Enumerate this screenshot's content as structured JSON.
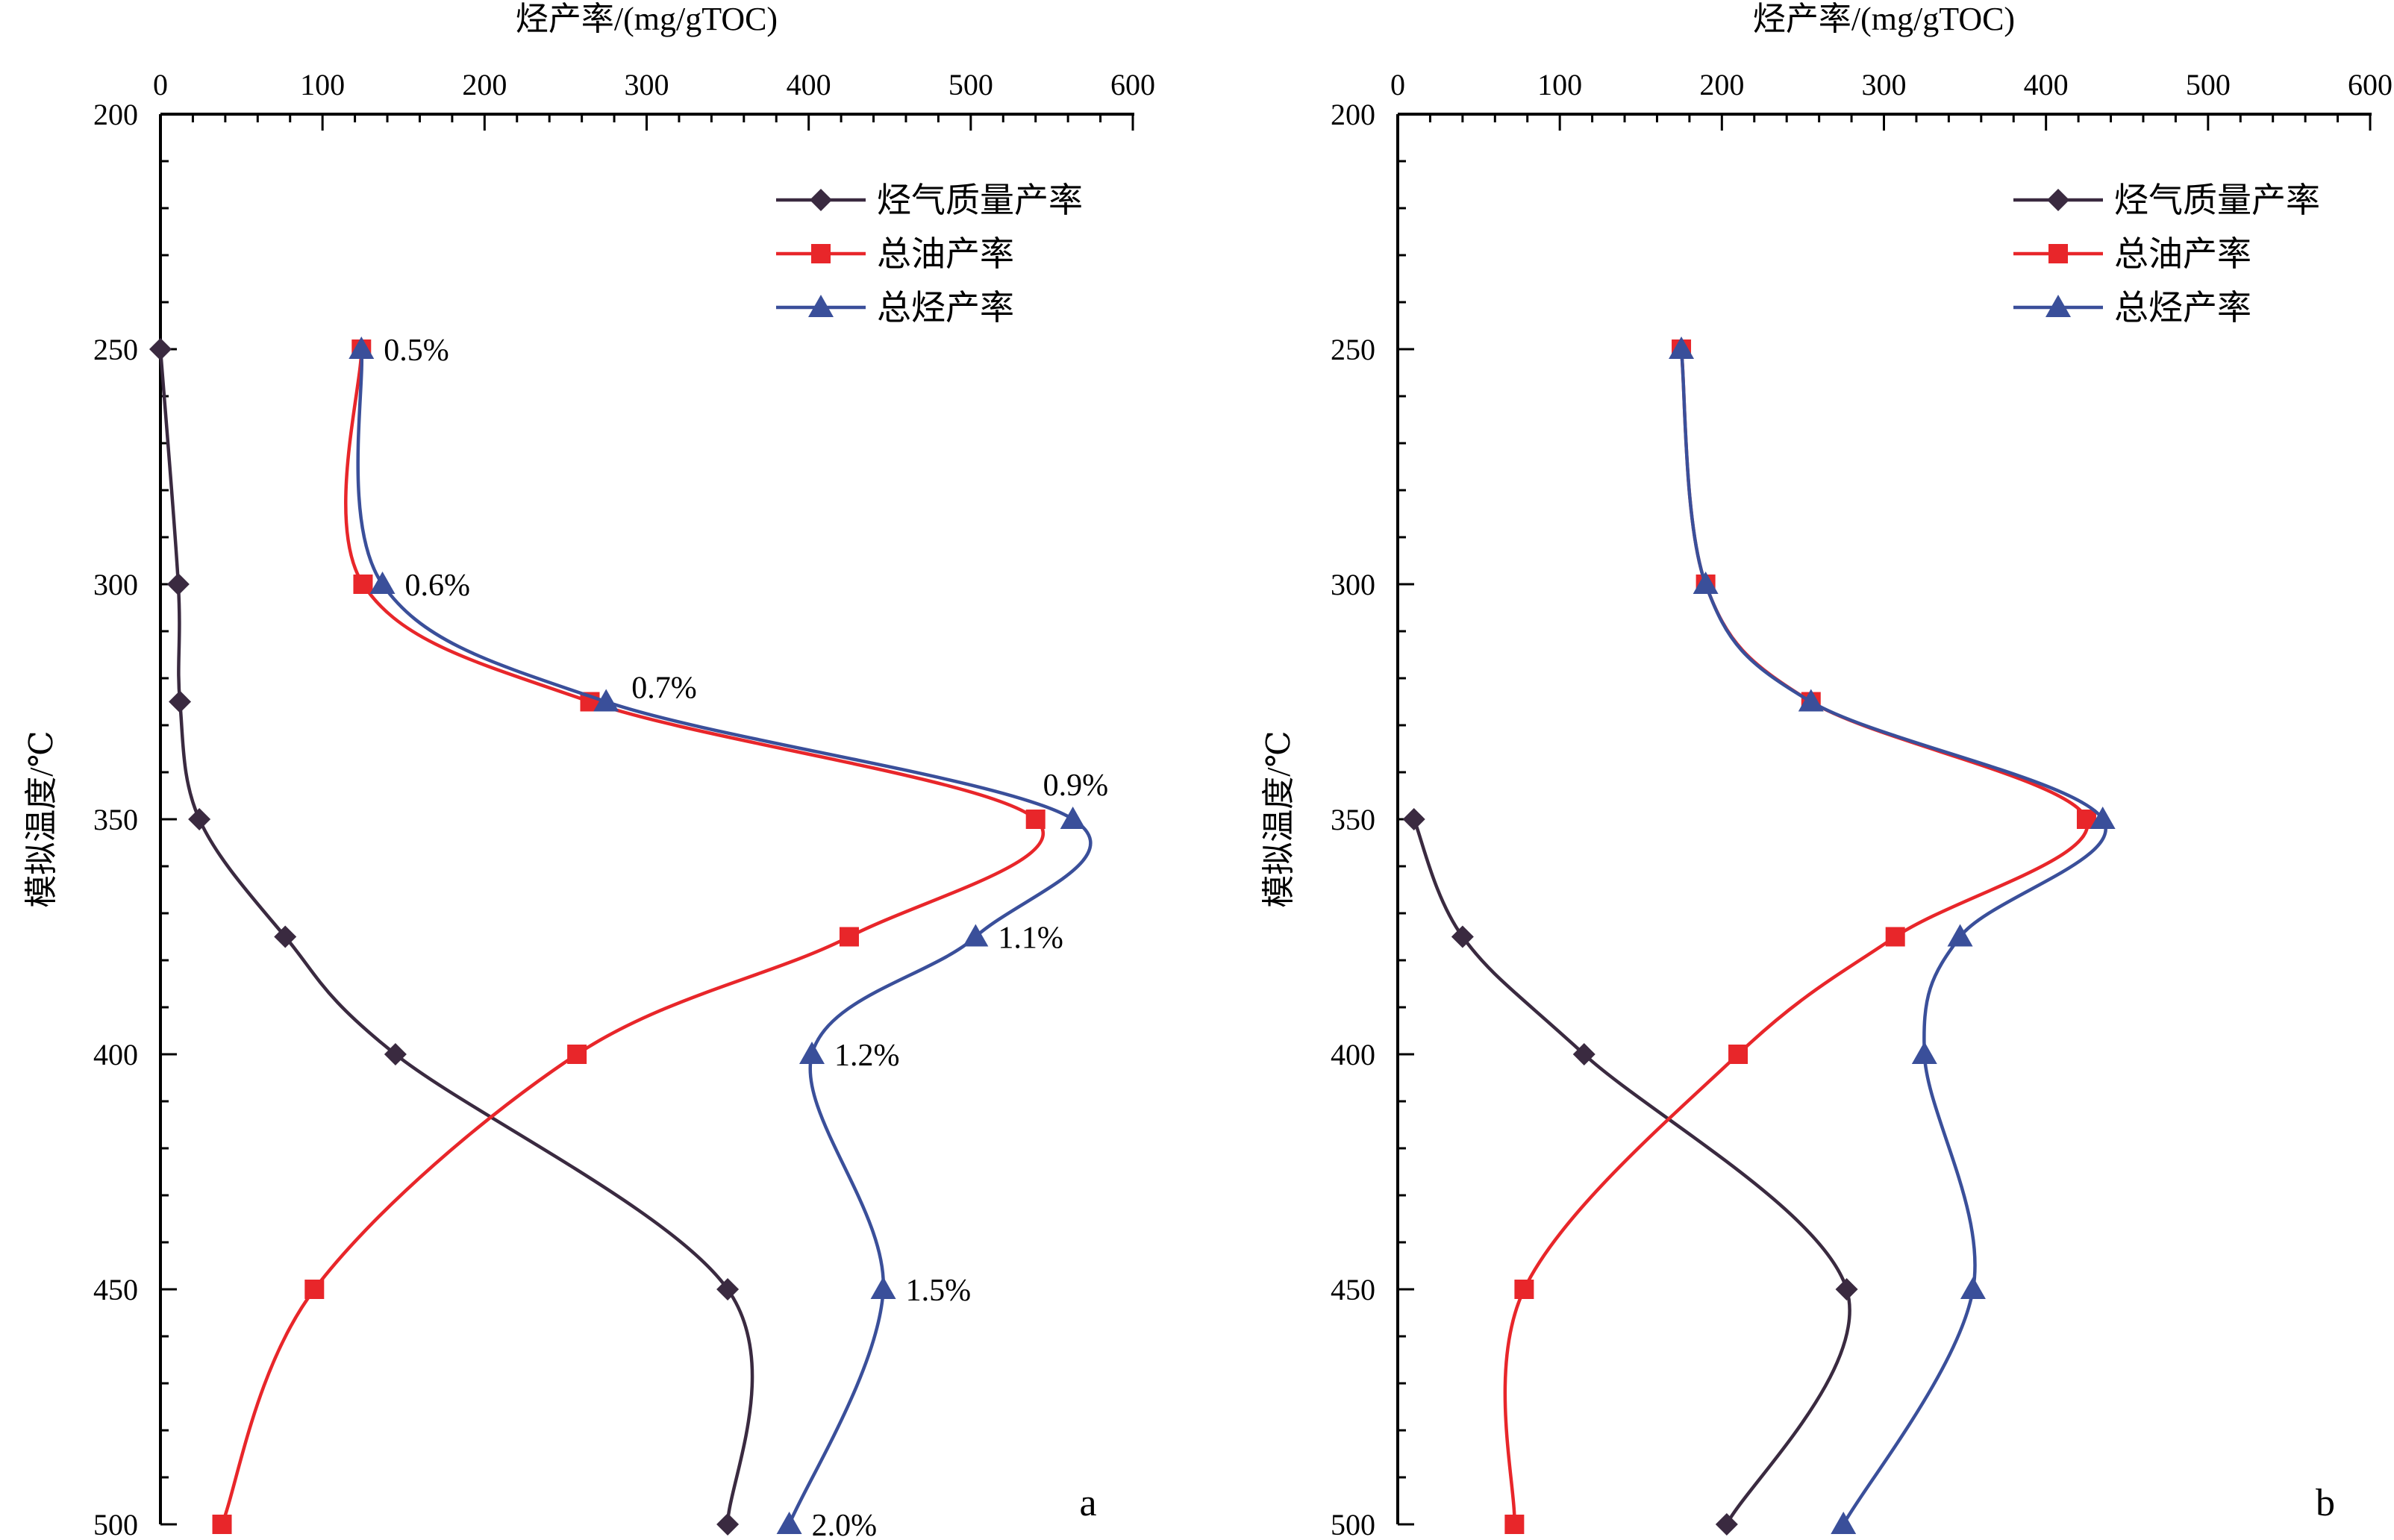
{
  "chart_data": [
    {
      "type": "line",
      "panel_label": "a",
      "xlabel": "烃产率/(mg/gTOC)",
      "ylabel": "模拟温度/℃",
      "xlim": [
        0,
        600
      ],
      "ylim": [
        200,
        500
      ],
      "y_inverted": true,
      "x_axis_position": "top",
      "x_ticks": [
        "0",
        "100",
        "200",
        "300",
        "400",
        "500",
        "600"
      ],
      "y_ticks": [
        "200",
        "250",
        "300",
        "350",
        "400",
        "450",
        "500"
      ],
      "legend_position": "top-right",
      "y": [
        250,
        300,
        325,
        350,
        375,
        400,
        450,
        500
      ],
      "series": [
        {
          "name": "烃气质量产率",
          "marker": "diamond",
          "color": "#3a2a40",
          "x": [
            0,
            11,
            12,
            24,
            77,
            145,
            350,
            350
          ]
        },
        {
          "name": "总油产率",
          "marker": "square",
          "color": "#e8262a",
          "x": [
            124,
            125,
            265,
            540,
            425,
            257,
            95,
            38
          ]
        },
        {
          "name": "总烃产率",
          "marker": "triangle",
          "color": "#3a4f9a",
          "x": [
            124,
            137,
            275,
            563,
            503,
            402,
            446,
            388
          ]
        }
      ],
      "point_labels": [
        {
          "x": 124,
          "y": 250,
          "text": "0.5%"
        },
        {
          "x": 137,
          "y": 300,
          "text": "0.6%"
        },
        {
          "x": 275,
          "y": 325,
          "text": "0.7%"
        },
        {
          "x": 563,
          "y": 350,
          "text": "0.9%"
        },
        {
          "x": 503,
          "y": 375,
          "text": "1.1%"
        },
        {
          "x": 402,
          "y": 400,
          "text": "1.2%"
        },
        {
          "x": 446,
          "y": 450,
          "text": "1.5%"
        },
        {
          "x": 388,
          "y": 500,
          "text": "2.0%"
        }
      ]
    },
    {
      "type": "line",
      "panel_label": "b",
      "xlabel": "烃产率/(mg/gTOC)",
      "ylabel": "模拟温度/℃",
      "xlim": [
        0,
        600
      ],
      "ylim": [
        200,
        500
      ],
      "y_inverted": true,
      "x_axis_position": "top",
      "x_ticks": [
        "0",
        "100",
        "200",
        "300",
        "400",
        "500",
        "600"
      ],
      "y_ticks": [
        "200",
        "250",
        "300",
        "350",
        "400",
        "450",
        "500"
      ],
      "legend_position": "top-right",
      "series": [
        {
          "name": "烃气质量产率",
          "marker": "diamond",
          "color": "#3a2a40",
          "y": [
            350,
            375,
            400,
            450,
            500
          ],
          "x": [
            10,
            40,
            115,
            277,
            203
          ]
        },
        {
          "name": "总油产率",
          "marker": "square",
          "color": "#e8262a",
          "y": [
            250,
            300,
            325,
            350,
            375,
            400,
            450,
            500
          ],
          "x": [
            175,
            190,
            255,
            425,
            307,
            210,
            78,
            72
          ]
        },
        {
          "name": "总烃产率",
          "marker": "triangle",
          "color": "#3a4f9a",
          "y": [
            250,
            300,
            325,
            350,
            375,
            400,
            450,
            500
          ],
          "x": [
            175,
            190,
            255,
            435,
            347,
            325,
            355,
            275
          ]
        }
      ],
      "point_labels": []
    }
  ]
}
